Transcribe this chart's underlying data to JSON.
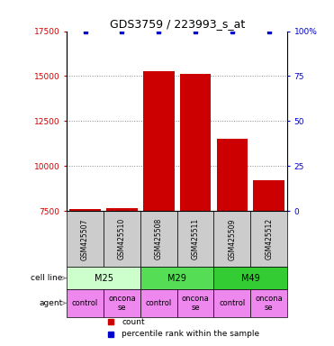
{
  "title": "GDS3759 / 223993_s_at",
  "samples": [
    "GSM425507",
    "GSM425510",
    "GSM425508",
    "GSM425511",
    "GSM425509",
    "GSM425512"
  ],
  "counts": [
    7600,
    7650,
    15300,
    15100,
    11500,
    9200
  ],
  "percentile_ranks": [
    100,
    100,
    100,
    100,
    100,
    100
  ],
  "ylim_left": [
    7500,
    17500
  ],
  "ylim_right": [
    0,
    100
  ],
  "yticks_left": [
    7500,
    10000,
    12500,
    15000,
    17500
  ],
  "yticks_right": [
    0,
    25,
    50,
    75,
    100
  ],
  "bar_color": "#cc0000",
  "dot_color": "#0000cc",
  "cell_lines": [
    {
      "label": "M25",
      "span": [
        0,
        2
      ],
      "color": "#ccffcc"
    },
    {
      "label": "M29",
      "span": [
        2,
        4
      ],
      "color": "#55dd55"
    },
    {
      "label": "M49",
      "span": [
        4,
        6
      ],
      "color": "#33cc33"
    }
  ],
  "agents": [
    {
      "label": "control",
      "span": [
        0,
        1
      ],
      "color": "#ee88ee"
    },
    {
      "label": "oncona\nse",
      "span": [
        1,
        2
      ],
      "color": "#ee88ee"
    },
    {
      "label": "control",
      "span": [
        2,
        3
      ],
      "color": "#ee88ee"
    },
    {
      "label": "oncona\nse",
      "span": [
        3,
        4
      ],
      "color": "#ee88ee"
    },
    {
      "label": "control",
      "span": [
        4,
        5
      ],
      "color": "#ee88ee"
    },
    {
      "label": "oncona\nse",
      "span": [
        5,
        6
      ],
      "color": "#ee88ee"
    }
  ],
  "sample_bg_color": "#cccccc",
  "title_fontsize": 9,
  "tick_fontsize": 6.5,
  "sample_fontsize": 5.5,
  "cell_fontsize": 7,
  "agent_fontsize": 6,
  "legend_fontsize": 6.5,
  "left_tick_color": "#cc0000",
  "right_tick_color": "#0000cc",
  "grid_color": "#888888",
  "grid_ticks": [
    10000,
    12500,
    15000
  ],
  "cell_line_label": "cell line",
  "agent_label": "agent",
  "legend_count_label": "count",
  "legend_percentile_label": "percentile rank within the sample",
  "bar_width": 0.85
}
